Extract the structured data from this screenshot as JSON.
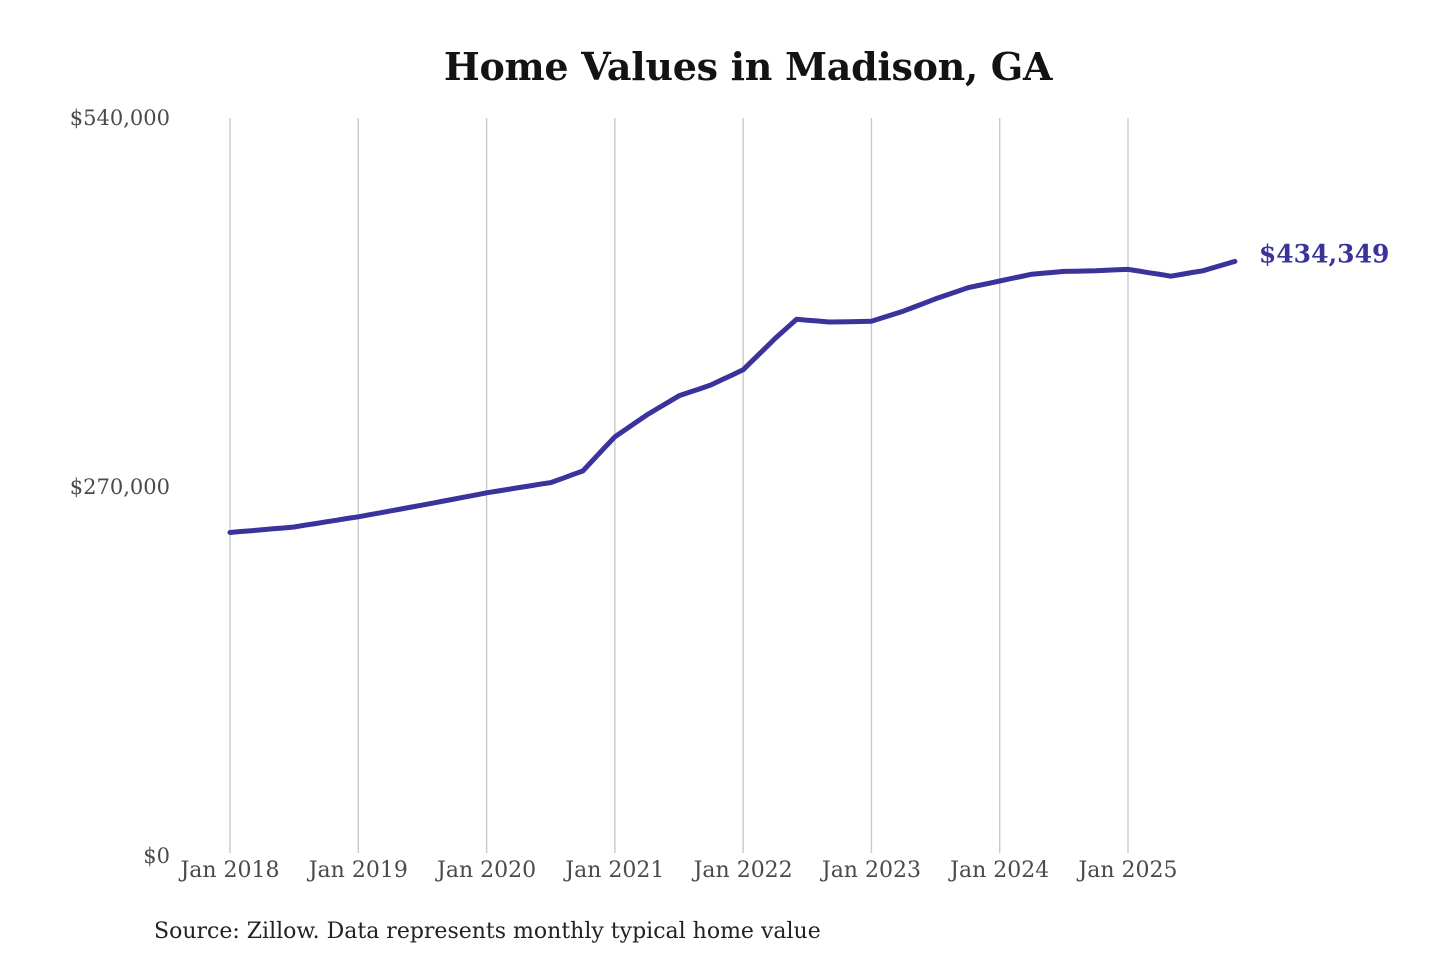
{
  "title": "Home Values in Madison, GA",
  "source_note": "Source: Zillow. Data represents monthly typical home value",
  "latest_value_label": "$434,349",
  "colors": {
    "line": "#3b339c",
    "latest_label": "#3b339c",
    "grid": "#cacaca",
    "axis_text": "#4a4a4a",
    "title_text": "#131313",
    "source_text": "#222222",
    "background": "#ffffff"
  },
  "y_axis": {
    "tick_labels": [
      "$540,000",
      "$270,000",
      "$0"
    ],
    "tick_values": [
      540000,
      270000,
      0
    ]
  },
  "x_axis": {
    "tick_labels": [
      "Jan 2018",
      "Jan 2019",
      "Jan 2020",
      "Jan 2021",
      "Jan 2022",
      "Jan 2023",
      "Jan 2024",
      "Jan 2025"
    ],
    "tick_month_indices": [
      0,
      12,
      24,
      36,
      48,
      60,
      72,
      84
    ]
  },
  "chart_data": {
    "type": "line",
    "title": "Home Values in Madison, GA",
    "series_name": "Monthly typical home value",
    "unit": "USD",
    "source": "Zillow",
    "xlabel": "",
    "ylabel": "",
    "ylim": [
      0,
      540000
    ],
    "grid": "vertical",
    "legend": "none",
    "x_range": [
      "2018-01",
      "2025-11"
    ],
    "final_point": {
      "month": "2025-11",
      "value": 434349,
      "label": "$434,349"
    },
    "x": [
      "2018-01",
      "2018-02",
      "2018-03",
      "2018-04",
      "2018-05",
      "2018-06",
      "2018-07",
      "2018-08",
      "2018-09",
      "2018-10",
      "2018-11",
      "2018-12",
      "2019-01",
      "2019-02",
      "2019-03",
      "2019-04",
      "2019-05",
      "2019-06",
      "2019-07",
      "2019-08",
      "2019-09",
      "2019-10",
      "2019-11",
      "2019-12",
      "2020-01",
      "2020-02",
      "2020-03",
      "2020-04",
      "2020-05",
      "2020-06",
      "2020-07",
      "2020-08",
      "2020-09",
      "2020-10",
      "2020-11",
      "2020-12",
      "2021-01",
      "2021-02",
      "2021-03",
      "2021-04",
      "2021-05",
      "2021-06",
      "2021-07",
      "2021-08",
      "2021-09",
      "2021-10",
      "2021-11",
      "2021-12",
      "2022-01",
      "2022-02",
      "2022-03",
      "2022-04",
      "2022-05",
      "2022-06",
      "2022-07",
      "2022-08",
      "2022-09",
      "2022-10",
      "2022-11",
      "2022-12",
      "2023-01",
      "2023-02",
      "2023-03",
      "2023-04",
      "2023-05",
      "2023-06",
      "2023-07",
      "2023-08",
      "2023-09",
      "2023-10",
      "2023-11",
      "2023-12",
      "2024-01",
      "2024-02",
      "2024-03",
      "2024-04",
      "2024-05",
      "2024-06",
      "2024-07",
      "2024-08",
      "2024-09",
      "2024-10",
      "2024-11",
      "2024-12",
      "2025-01",
      "2025-02",
      "2025-03",
      "2025-04",
      "2025-05",
      "2025-06",
      "2025-07",
      "2025-08",
      "2025-09",
      "2025-10",
      "2025-11"
    ],
    "values": [
      236000,
      236700,
      237300,
      238000,
      238700,
      239300,
      240000,
      241300,
      242500,
      243800,
      245000,
      246300,
      247500,
      248900,
      250300,
      251800,
      253200,
      254600,
      256000,
      257500,
      259000,
      260500,
      262000,
      263500,
      265000,
      266300,
      267500,
      268800,
      270000,
      271300,
      272500,
      275300,
      278200,
      281000,
      289300,
      297700,
      306000,
      311300,
      316700,
      322000,
      326700,
      331300,
      336000,
      338700,
      341300,
      344000,
      347700,
      351300,
      355000,
      362700,
      370300,
      378000,
      385000,
      392000,
      391300,
      390700,
      390000,
      390100,
      390200,
      390400,
      390500,
      393000,
      395500,
      398000,
      401000,
      404000,
      407000,
      409700,
      412300,
      415000,
      416700,
      418300,
      420000,
      421700,
      423300,
      425000,
      425700,
      426300,
      427000,
      427200,
      427300,
      427500,
      427800,
      428200,
      428500,
      427300,
      426000,
      424800,
      423500,
      424800,
      426200,
      427500,
      429800,
      432100,
      434349
    ]
  }
}
